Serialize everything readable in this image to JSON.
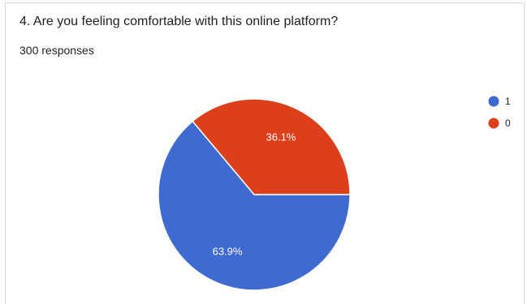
{
  "question": {
    "title": "4. Are you feeling comfortable with this online platform?",
    "responses": "300 responses"
  },
  "chart_data": {
    "type": "pie",
    "categories": [
      "1",
      "0"
    ],
    "values": [
      63.9,
      36.1
    ],
    "labels": [
      "63.9%",
      "36.1%"
    ],
    "colors": [
      "#3f6bd1",
      "#dc3f19"
    ],
    "legend": {
      "position": "right",
      "entries": [
        "1",
        "0"
      ]
    }
  }
}
